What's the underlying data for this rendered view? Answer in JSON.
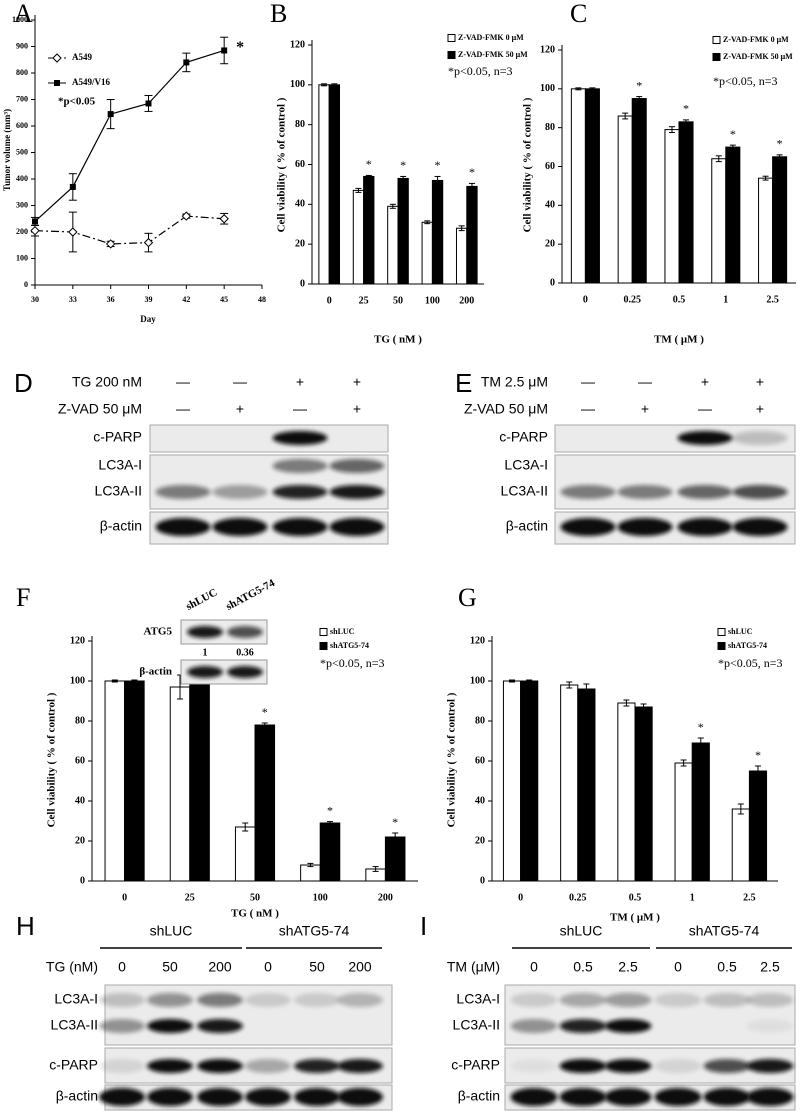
{
  "chart_data": [
    {
      "type": "line",
      "panel": "A",
      "xlabel": "Day",
      "ylabel": "Tumor volume (mm³)",
      "annotation": "*p<0.05",
      "x": [
        30,
        33,
        36,
        39,
        42,
        45
      ],
      "xlim": [
        30,
        48
      ],
      "xticks": [
        30,
        33,
        36,
        39,
        42,
        45,
        48
      ],
      "ylim": [
        0,
        1000
      ],
      "yticks": [
        0,
        100,
        200,
        300,
        400,
        500,
        600,
        700,
        800,
        900,
        1000
      ],
      "series": [
        {
          "name": "A549",
          "color": "#000000",
          "line_style": "dashdot",
          "marker": "open-diamond",
          "values": [
            205,
            200,
            155,
            160,
            260,
            250
          ],
          "errors": [
            20,
            75,
            10,
            35,
            8,
            20
          ],
          "stars": [
            null,
            null,
            null,
            null,
            null,
            null
          ]
        },
        {
          "name": "A549/V16",
          "color": "#000000",
          "line_style": "solid",
          "marker": "filled-square",
          "values": [
            240,
            370,
            645,
            685,
            840,
            885
          ],
          "errors": [
            15,
            50,
            55,
            30,
            35,
            50
          ],
          "stars": [
            null,
            null,
            null,
            null,
            null,
            "*"
          ]
        }
      ]
    },
    {
      "type": "bar",
      "panel": "B",
      "xlabel": "TG ( nM )",
      "ylabel": "Cell viability ( % of control )",
      "annotation": "*p<0.05, n=3",
      "categories": [
        0,
        25,
        50,
        100,
        200
      ],
      "ylim": [
        0,
        120
      ],
      "yticks": [
        0,
        20,
        40,
        60,
        80,
        100,
        120
      ],
      "series": [
        {
          "name": "Z-VAD-FMK 0 μM",
          "color": "#ffffff",
          "values": [
            100,
            47,
            39,
            31,
            28
          ],
          "errors": [
            0.5,
            1,
            1,
            0.7,
            1.2
          ],
          "stars": [
            null,
            null,
            null,
            null,
            null
          ]
        },
        {
          "name": "Z-VAD-FMK 50 μM",
          "color": "#000000",
          "values": [
            100,
            54,
            53,
            52,
            49
          ],
          "errors": [
            0.5,
            0.5,
            1,
            2,
            1.5
          ],
          "stars": [
            null,
            "*",
            "*",
            "*",
            "*"
          ]
        }
      ]
    },
    {
      "type": "bar",
      "panel": "C",
      "xlabel": "TM ( μM )",
      "ylabel": "Cell viability ( % of control )",
      "annotation": "*p<0.05, n=3",
      "categories": [
        0,
        0.25,
        0.5,
        1,
        2.5
      ],
      "ylim": [
        0,
        120
      ],
      "yticks": [
        0,
        20,
        40,
        60,
        80,
        100,
        120
      ],
      "series": [
        {
          "name": "Z-VAD-FMK 0 μM",
          "color": "#ffffff",
          "values": [
            100,
            86,
            79,
            64,
            54
          ],
          "errors": [
            0.5,
            1.5,
            1.5,
            1.5,
            1
          ],
          "stars": [
            null,
            null,
            null,
            null,
            null
          ]
        },
        {
          "name": "Z-VAD-FMK 50 μM",
          "color": "#000000",
          "values": [
            100,
            95,
            83,
            70,
            65
          ],
          "errors": [
            0.5,
            1,
            1,
            1,
            1
          ],
          "stars": [
            null,
            "*",
            "*",
            "*",
            "*"
          ]
        }
      ]
    },
    {
      "type": "bar",
      "panel": "F",
      "xlabel": "TG ( nM )",
      "ylabel": "Cell viability ( % of control )",
      "annotation": "*p<0.05, n=3",
      "categories": [
        0,
        25,
        50,
        100,
        200
      ],
      "ylim": [
        0,
        120
      ],
      "yticks": [
        0,
        20,
        40,
        60,
        80,
        100,
        120
      ],
      "series": [
        {
          "name": "shLUC",
          "color": "#ffffff",
          "values": [
            100,
            97,
            27,
            8,
            6
          ],
          "errors": [
            0.5,
            6,
            2,
            0.8,
            1.2
          ],
          "stars": [
            null,
            null,
            null,
            null,
            null
          ]
        },
        {
          "name": "shATG5-74",
          "color": "#000000",
          "values": [
            100,
            100,
            78,
            29,
            22
          ],
          "errors": [
            0.5,
            3,
            1,
            0.7,
            2
          ],
          "stars": [
            null,
            null,
            "*",
            "*",
            "*"
          ]
        }
      ],
      "inset": {
        "lanes": [
          "shLUC",
          "shATG5-74"
        ],
        "rows": [
          "ATG5",
          "β-actin"
        ],
        "ratios": [
          1,
          0.36
        ]
      }
    },
    {
      "type": "bar",
      "panel": "G",
      "xlabel": "TM ( μM )",
      "ylabel": "Cell viability ( % of control )",
      "annotation": "*p<0.05, n=3",
      "categories": [
        0,
        0.25,
        0.5,
        1,
        2.5
      ],
      "ylim": [
        0,
        120
      ],
      "yticks": [
        0,
        20,
        40,
        60,
        80,
        100,
        120
      ],
      "series": [
        {
          "name": "shLUC",
          "color": "#ffffff",
          "values": [
            100,
            98,
            89,
            59,
            36
          ],
          "errors": [
            0.5,
            1.5,
            1.5,
            1.5,
            2.5
          ],
          "stars": [
            null,
            null,
            null,
            null,
            null
          ]
        },
        {
          "name": "shATG5-74",
          "color": "#000000",
          "values": [
            100,
            96,
            87,
            69,
            55
          ],
          "errors": [
            0.5,
            2.5,
            1.5,
            2.5,
            2.5
          ],
          "stars": [
            null,
            null,
            null,
            "*",
            "*"
          ]
        }
      ]
    }
  ],
  "blots": [
    {
      "panel": "D",
      "conditions": [
        {
          "label": "TG 200 nM",
          "lanes": [
            "—",
            "—",
            "+",
            "+"
          ]
        },
        {
          "label": "Z-VAD 50 μM",
          "lanes": [
            "—",
            "+",
            "—",
            "+"
          ]
        }
      ],
      "bands": [
        "c-PARP",
        "LC3A-I",
        "LC3A-II",
        "β-actin"
      ]
    },
    {
      "panel": "E",
      "conditions": [
        {
          "label": "TM 2.5 μM",
          "lanes": [
            "—",
            "—",
            "+",
            "+"
          ]
        },
        {
          "label": "Z-VAD 50 μM",
          "lanes": [
            "—",
            "+",
            "—",
            "+"
          ]
        }
      ],
      "bands": [
        "c-PARP",
        "LC3A-I",
        "LC3A-II",
        "β-actin"
      ]
    },
    {
      "panel": "H",
      "groups": [
        "shLUC",
        "shATG5-74"
      ],
      "conditions": [
        {
          "label": "TG (nM)",
          "lanes": [
            0,
            50,
            200,
            0,
            50,
            200
          ]
        }
      ],
      "bands": [
        "LC3A-I",
        "LC3A-II",
        "c-PARP",
        "β-actin"
      ]
    },
    {
      "panel": "I",
      "groups": [
        "shLUC",
        "shATG5-74"
      ],
      "conditions": [
        {
          "label": "TM (μM)",
          "lanes": [
            0,
            0.5,
            2.5,
            0,
            0.5,
            2.5
          ]
        }
      ],
      "bands": [
        "LC3A-I",
        "LC3A-II",
        "c-PARP",
        "β-actin"
      ]
    }
  ]
}
